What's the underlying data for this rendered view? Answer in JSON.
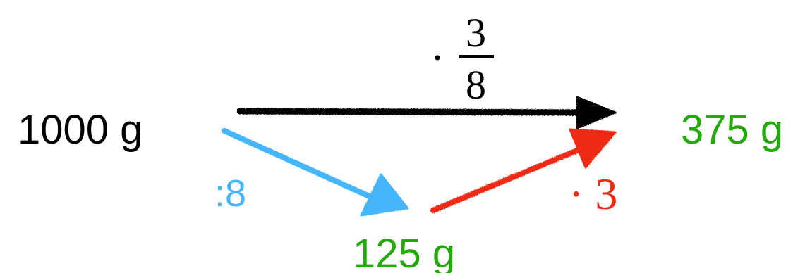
{
  "quantities": {
    "start": "1000 g",
    "intermediate": "125 g",
    "result": "375 g"
  },
  "operations": {
    "direct": {
      "dot": "·",
      "numerator": "3",
      "denominator": "8"
    },
    "divide": ":8",
    "multiply": "· 3"
  },
  "colors": {
    "text": "#000000",
    "quantity_green": "#22aa0b",
    "divide_blue": "#45b6fb",
    "multiply_red": "#ee2b12",
    "direct_arrow": "#000000"
  }
}
